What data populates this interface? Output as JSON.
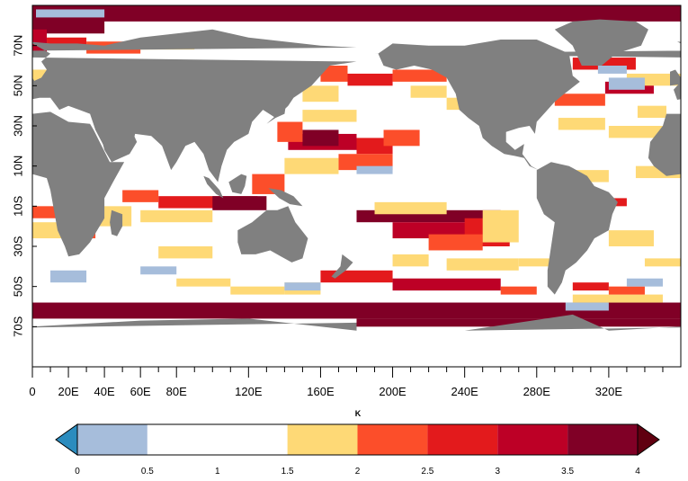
{
  "map": {
    "lat_labels": [
      "70N",
      "50N",
      "30N",
      "10N",
      "10S",
      "30S",
      "50S",
      "70S"
    ],
    "lat_values": [
      70,
      50,
      30,
      10,
      -10,
      -30,
      -50,
      -70
    ],
    "lon_labels": [
      "0",
      "20E",
      "40E",
      "60E",
      "80E",
      "120E",
      "160E",
      "200E",
      "240E",
      "280E",
      "320E"
    ],
    "lon_values": [
      0,
      20,
      40,
      60,
      80,
      120,
      160,
      200,
      240,
      280,
      320
    ],
    "lon_range": [
      0,
      360
    ],
    "lat_range": [
      -90,
      90
    ],
    "land_color": "#808080",
    "ocean_base_color": "#ffffff"
  },
  "colorbar": {
    "unit": "K",
    "tick_labels": [
      "0",
      "0.5",
      "1",
      "1.5",
      "2",
      "2.5",
      "3",
      "3.5",
      "4"
    ],
    "bins": [
      {
        "range": "<0",
        "color": "#2b8cbe"
      },
      {
        "range": "0-0.5",
        "color": "#a6bddb"
      },
      {
        "range": "0.5-1",
        "color": "#ffffff"
      },
      {
        "range": "1-1.5",
        "color": "#ffffff"
      },
      {
        "range": "1.5-2",
        "color": "#fed976"
      },
      {
        "range": "2-2.5",
        "color": "#fc4e2a"
      },
      {
        "range": "2.5-3",
        "color": "#e31a1c"
      },
      {
        "range": "3-3.5",
        "color": "#bd0026"
      },
      {
        "range": "3.5-4",
        "color": "#800026"
      },
      {
        "range": ">4",
        "color": "#600010"
      }
    ]
  }
}
